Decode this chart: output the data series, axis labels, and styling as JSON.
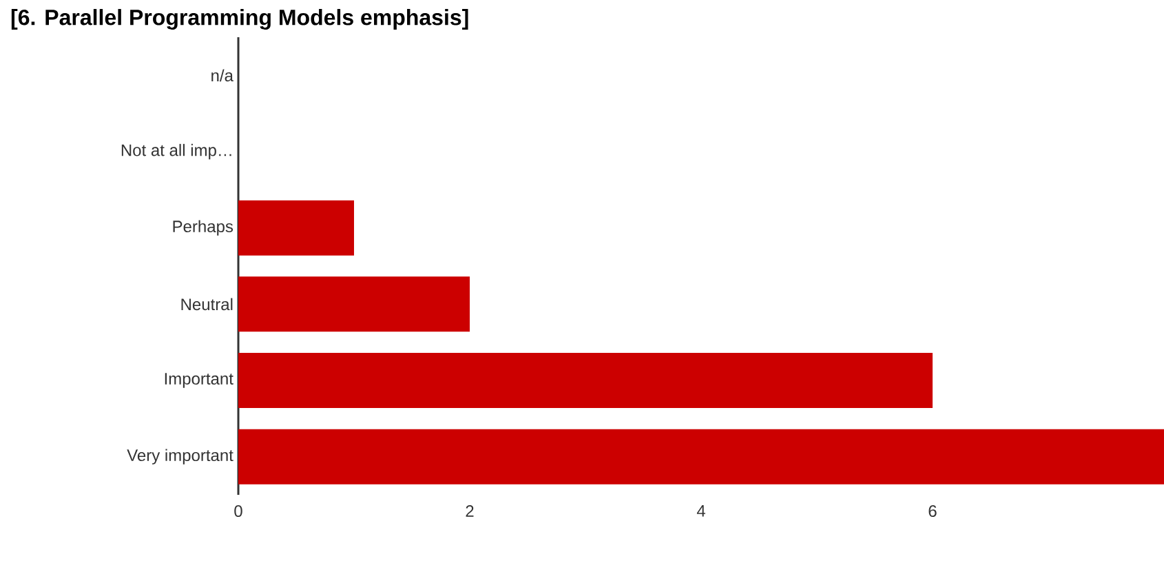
{
  "chart_data": {
    "type": "bar",
    "orientation": "horizontal",
    "title": "[6. Parallel Programming Models emphasis]",
    "categories": [
      "n/a",
      "Not at all imp…",
      "Perhaps",
      "Neutral",
      "Important",
      "Very important"
    ],
    "values": [
      0,
      0,
      1,
      2,
      6,
      8
    ],
    "color": "#cc0000",
    "xlim": [
      0,
      8
    ],
    "xticks": [
      0,
      2,
      4,
      6
    ]
  }
}
